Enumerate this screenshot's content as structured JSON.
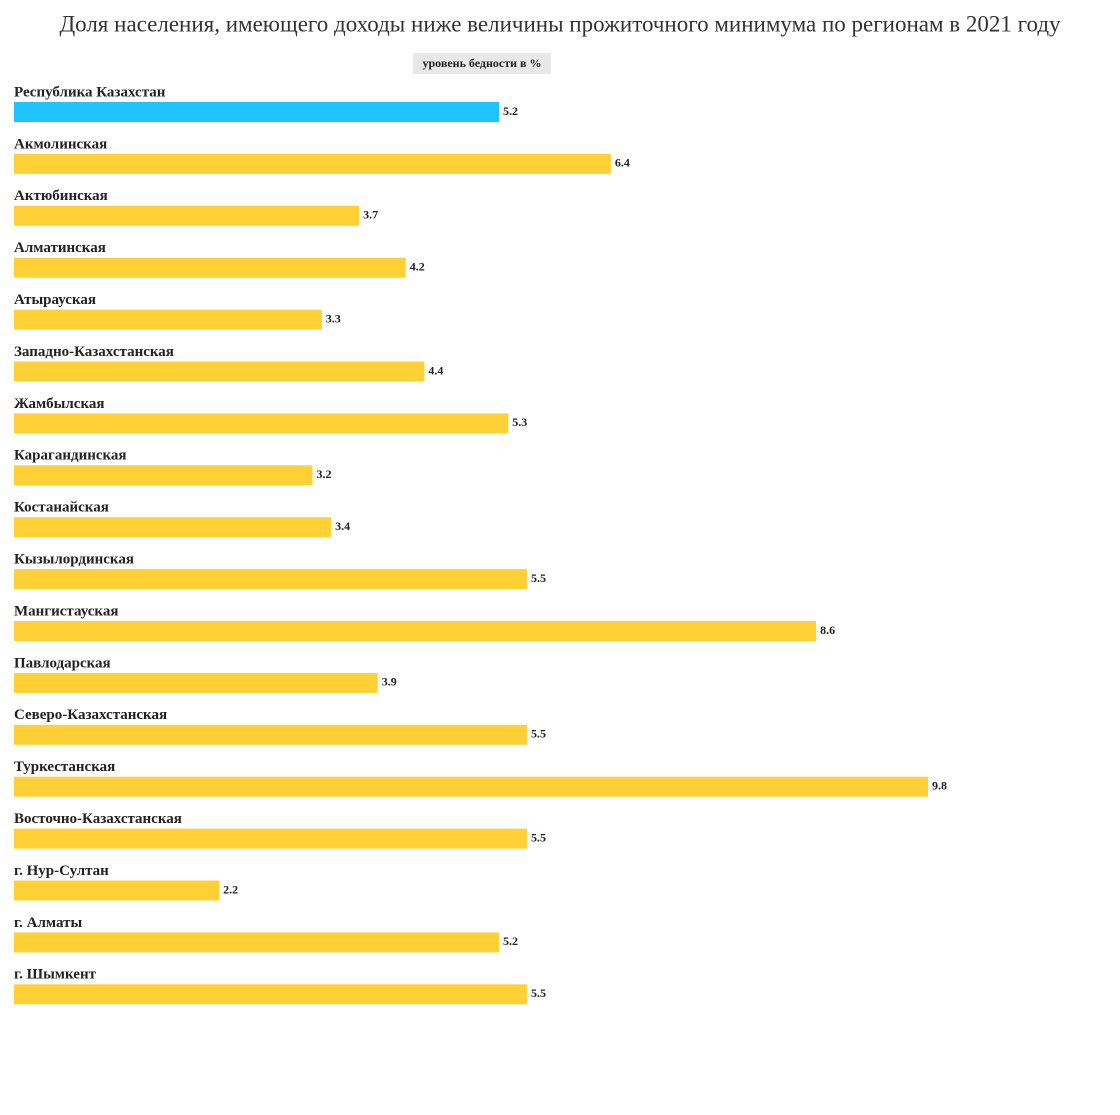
{
  "chart_data": {
    "type": "bar",
    "orientation": "horizontal",
    "title": "Доля населения, имеющего доходы ниже величины прожиточного минимума по регионам в 2021 году",
    "categories": [
      "Республика Казахстан",
      "Акмолинская",
      "Актюбинская",
      "Алматинская",
      "Атырауская",
      "Западно-Казахстанская",
      "Жамбылская",
      "Карагандинская",
      "Костанайская",
      "Кызылординская",
      "Мангистауская",
      "Павлодарская",
      "Северо-Казахстанская",
      "Туркестанская",
      "Восточно-Казахстанская",
      "г. Нур-Султан",
      "г. Алматы",
      "г. Шымкент"
    ],
    "series": [
      {
        "name": "уровень бедности в %",
        "values": [
          5.2,
          6.4,
          3.7,
          4.2,
          3.3,
          4.4,
          5.3,
          3.2,
          3.4,
          5.5,
          8.6,
          3.9,
          5.5,
          9.8,
          5.5,
          2.2,
          5.2,
          5.5
        ],
        "colors": [
          "#1ec3ff",
          "#ffd136",
          "#ffd136",
          "#ffd136",
          "#ffd136",
          "#ffd136",
          "#ffd136",
          "#ffd136",
          "#ffd136",
          "#ffd136",
          "#ffd136",
          "#ffd136",
          "#ffd136",
          "#ffd136",
          "#ffd136",
          "#ffd136",
          "#ffd136",
          "#ffd136"
        ]
      }
    ]
  }
}
